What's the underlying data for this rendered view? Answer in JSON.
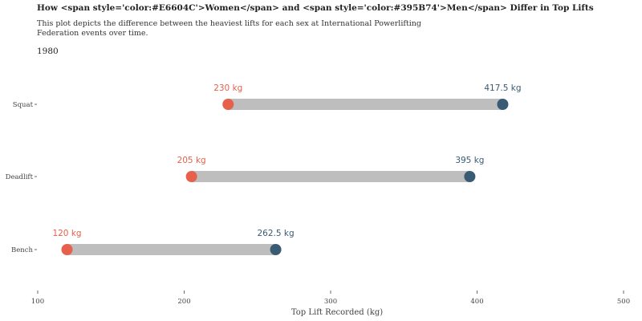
{
  "chart_data": {
    "type": "dumbbell",
    "title": "How <span style='color:#E6604C'>Women</span> and <span style='color:#395B74'>Men</span> Differ in Top Lifts",
    "subtitle": "This plot depicts the difference between the heaviest lifts for each sex at International Powerlifting Federation events over time.",
    "year_label": "1980",
    "xlabel": "Top Lift Recorded (kg)",
    "xlim": [
      100,
      500
    ],
    "x_ticks": [
      100,
      200,
      300,
      400,
      500
    ],
    "categories": [
      "Squat",
      "Deadlift",
      "Bench"
    ],
    "series": [
      {
        "color": "#E6604C",
        "values": [
          230,
          205,
          120
        ],
        "labels": [
          "230 kg",
          "205 kg",
          "120 kg"
        ]
      },
      {
        "color": "#395B74",
        "values": [
          417.5,
          395,
          262.5
        ],
        "labels": [
          "417.5 kg",
          "395 kg",
          "262.5 kg"
        ]
      }
    ],
    "bar_color": "#BEBEBE",
    "grid": false
  }
}
